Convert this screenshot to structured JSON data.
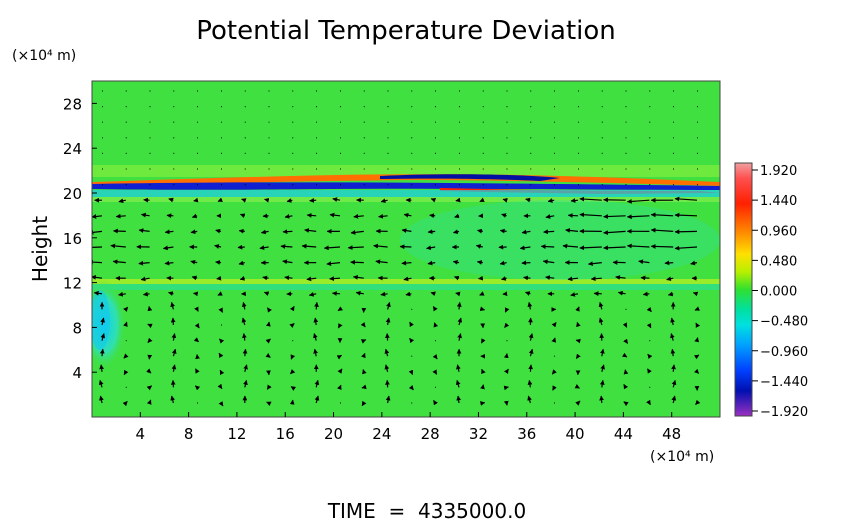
{
  "chart_data": {
    "type": "heatmap",
    "title": "Potential Temperature Deviation",
    "ylabel": "Height",
    "y_unit": "(×10⁴ m)",
    "x_unit": "(×10⁴ m)",
    "xlabel": "",
    "xlim": [
      0,
      52
    ],
    "ylim": [
      0,
      30
    ],
    "x_ticks": [
      "4",
      "8",
      "12",
      "16",
      "20",
      "24",
      "28",
      "32",
      "36",
      "40",
      "44",
      "48"
    ],
    "y_ticks": [
      "4",
      "8",
      "12",
      "16",
      "20",
      "24",
      "28"
    ],
    "colorbar": {
      "range": [
        -1.92,
        1.92
      ],
      "tick_labels": [
        "1.920",
        "1.440",
        "0.960",
        "0.480",
        "0.000",
        "−0.480",
        "−0.960",
        "−1.440",
        "−1.920"
      ]
    },
    "footer": "TIME  =  4335000.0",
    "overlay": "wind vector arrows"
  }
}
